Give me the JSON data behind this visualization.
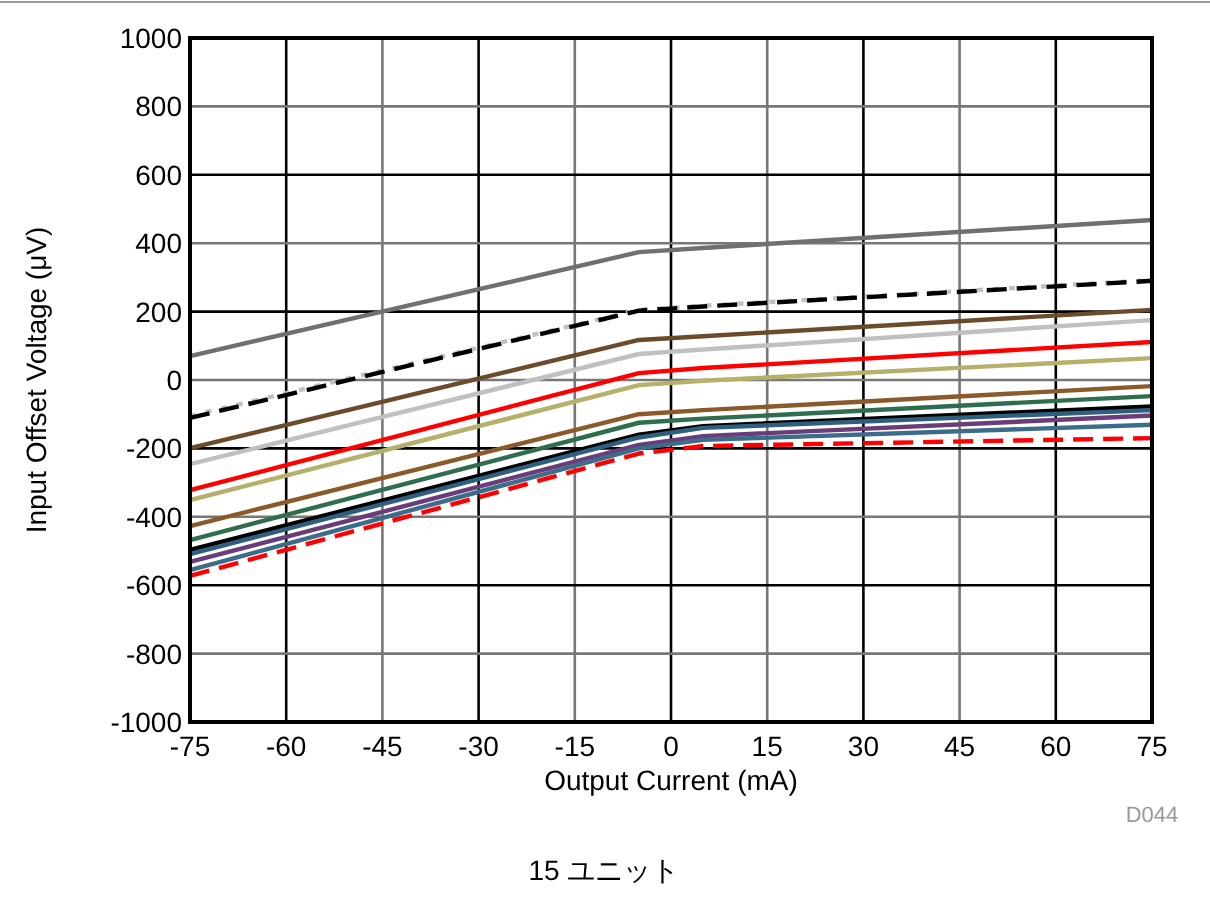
{
  "chart_data": {
    "type": "line",
    "xlabel": "Output Current (mA)",
    "ylabel": "Input Offset Voltage (μV)",
    "x": [
      -75,
      -5,
      5,
      75
    ],
    "xlim": [
      -75,
      75
    ],
    "xticks": [
      -75,
      -60,
      -45,
      -30,
      -15,
      0,
      15,
      30,
      45,
      60,
      75
    ],
    "ylim": [
      -1000,
      1000
    ],
    "yticks": [
      -1000,
      -800,
      -600,
      -400,
      -200,
      0,
      200,
      400,
      600,
      800,
      1000
    ],
    "grid": true,
    "series": [
      {
        "color": "#707070",
        "values": [
          70,
          374,
          386,
          468
        ]
      },
      {
        "color": "#c0c0c0",
        "line_style": "dotted",
        "values": [
          -105,
          205,
          217,
          292
        ]
      },
      {
        "color": "#000000",
        "line_style": "dashed",
        "values": [
          -111,
          203,
          215,
          290
        ]
      },
      {
        "color": "#6b4c2a",
        "values": [
          -199,
          117,
          128,
          205
        ]
      },
      {
        "color": "#c0c0c0",
        "values": [
          -246,
          76,
          89,
          175
        ]
      },
      {
        "color": "#ff0000",
        "values": [
          -322,
          20,
          35,
          111
        ]
      },
      {
        "color": "#b5b06a",
        "values": [
          -351,
          -15,
          -2,
          64
        ]
      },
      {
        "color": "#8b5a2b",
        "values": [
          -427,
          -100,
          -88,
          -18
        ]
      },
      {
        "color": "#2e6e4e",
        "values": [
          -468,
          -125,
          -113,
          -47
        ]
      },
      {
        "color": "#000000",
        "values": [
          -497,
          -160,
          -135,
          -77
        ]
      },
      {
        "color": "#2f5f7f",
        "values": [
          -509,
          -168,
          -140,
          -88
        ]
      },
      {
        "color": "#6a3d7a",
        "values": [
          -532,
          -190,
          -164,
          -104
        ]
      },
      {
        "color": "#3a6d8a",
        "values": [
          -556,
          -200,
          -175,
          -131
        ]
      },
      {
        "color": "#ff0000",
        "line_style": "dashed",
        "values": [
          -573,
          -215,
          -193,
          -170
        ]
      }
    ],
    "annotations": [
      "D044",
      "15 ユニット"
    ]
  }
}
